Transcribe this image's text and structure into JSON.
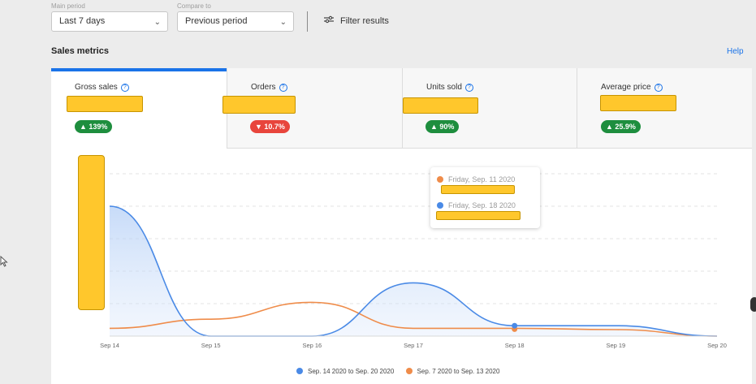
{
  "filters": {
    "main_period": {
      "label": "Main period",
      "value": "Last 7 days"
    },
    "compare_to": {
      "label": "Compare to",
      "value": "Previous period"
    },
    "filter_results_label": "Filter results",
    "filter_icon": "sliders-icon"
  },
  "section": {
    "title": "Sales metrics",
    "help_label": "Help"
  },
  "tabs": [
    {
      "label": "Gross sales",
      "change": "▲ 139%",
      "direction": "up"
    },
    {
      "label": "Orders",
      "change": "▼ 10.7%",
      "direction": "down"
    },
    {
      "label": "Units sold",
      "change": "▲ 90%",
      "direction": "up"
    },
    {
      "label": "Average price",
      "change": "▲ 25.9%",
      "direction": "up"
    }
  ],
  "colors": {
    "accent": "#1a73e8",
    "current": "#4a8ae6",
    "previous": "#ef8c4a",
    "positive": "#1e8e3e",
    "negative": "#e8453c",
    "redaction": "#ffc72c"
  },
  "chart_data": {
    "type": "area",
    "categories": [
      "Sep 14",
      "Sep 15",
      "Sep 16",
      "Sep 17",
      "Sep 18",
      "Sep 19",
      "Sep 20"
    ],
    "y_axis": "redacted",
    "ylim": [
      0,
      100
    ],
    "grid": true,
    "legend_position": "bottom",
    "series": [
      {
        "name": "Sep. 14 2020 to Sep. 20 2020",
        "values": [
          100,
          0,
          0,
          41,
          8,
          8,
          0
        ]
      },
      {
        "name": "Sep. 7 2020 to Sep. 13 2020",
        "values": [
          6,
          13,
          26,
          6,
          6,
          5,
          0
        ]
      }
    ]
  },
  "tooltip": {
    "rows": [
      {
        "date": "Friday, Sep. 11 2020",
        "series": "previous"
      },
      {
        "date": "Friday, Sep. 18 2020",
        "series": "current"
      }
    ]
  },
  "legend": [
    {
      "label": "Sep. 14 2020 to Sep. 20 2020",
      "series": "current"
    },
    {
      "label": "Sep. 7 2020 to Sep. 13 2020",
      "series": "previous"
    }
  ]
}
